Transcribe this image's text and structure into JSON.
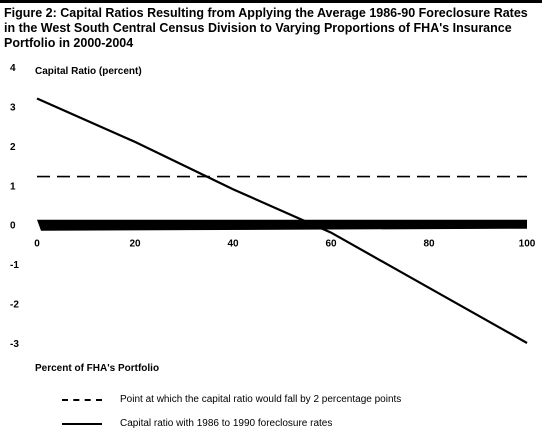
{
  "chart_data": {
    "type": "line",
    "title": "Figure 2: Capital Ratios Resulting from Applying the Average 1986-90 Foreclosure Rates in the West South Central Census Division to Varying Proportions of FHA's Insurance Portfolio in 2000-2004",
    "ylabel": "Capital Ratio (percent)",
    "xlabel": "Percent of FHA's Portfolio",
    "xlim": [
      0,
      100
    ],
    "ylim": [
      -3,
      4
    ],
    "x_ticks": [
      "0",
      "20",
      "40",
      "60",
      "80",
      "100"
    ],
    "y_ticks": [
      "4",
      "3",
      "2",
      "1",
      "0",
      "-1",
      "-2",
      "-3"
    ],
    "legend_position": "bottom",
    "series": [
      {
        "name": "Point at which the capital ratio would fall by 2 percentage points",
        "style": "dashed",
        "x": [
          0,
          100
        ],
        "y": [
          1.22,
          1.22
        ]
      },
      {
        "name": "Capital ratio with 1986 to 1990 foreclosure rates",
        "style": "solid",
        "x": [
          0,
          20,
          40,
          60,
          80,
          100
        ],
        "y": [
          3.2,
          2.1,
          0.9,
          -0.2,
          -1.6,
          -3.0
        ]
      }
    ]
  }
}
